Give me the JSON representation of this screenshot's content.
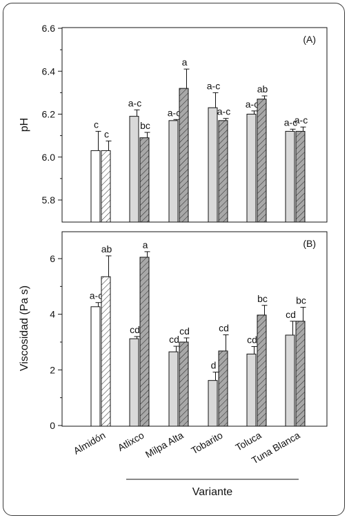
{
  "colors": {
    "control": "#ffffff",
    "gray": "#d9d9d9",
    "hatch_fill": "#a8a8a8",
    "ink": "#111111"
  },
  "chart_data": [
    {
      "type": "bar",
      "panel_label": "(A)",
      "ylabel": "pH",
      "ylim": [
        5.65,
        6.6
      ],
      "yticks": [
        "5.8",
        "6.0",
        "6.2",
        "6.4",
        "6.6"
      ],
      "categories": [
        "Almidón",
        "Atlixco",
        "Milpa Alta",
        "Tobarito",
        "Toluca",
        "Tuna Blanca"
      ],
      "series": [
        {
          "values": [
            6.03,
            6.19,
            6.17,
            6.23,
            6.2,
            6.12
          ],
          "errors": [
            0.09,
            0.03,
            0.005,
            0.07,
            0.015,
            0.01
          ],
          "labels": [
            "c",
            "a-c",
            "a-c",
            "a-c",
            "a-c",
            "a-c"
          ]
        },
        {
          "values": [
            6.03,
            6.09,
            6.32,
            6.17,
            6.27,
            6.12
          ],
          "errors": [
            0.045,
            0.025,
            0.09,
            0.01,
            0.015,
            0.02
          ],
          "labels": [
            "c",
            "bc",
            "a",
            "a-c",
            "ab",
            "a-c"
          ]
        }
      ]
    },
    {
      "type": "bar",
      "panel_label": "(B)",
      "ylabel": "Viscosidad (Pa s)",
      "ylim": [
        0,
        7
      ],
      "yticks": [
        "0",
        "2",
        "4",
        "6"
      ],
      "xlabel": "Variante",
      "categories": [
        "Almidón",
        "Atlixco",
        "Milpa Alta",
        "Tobarito",
        "Toluca",
        "Tuna Blanca"
      ],
      "series": [
        {
          "values": [
            4.27,
            3.12,
            2.65,
            1.62,
            2.57,
            3.25
          ],
          "errors": [
            0.15,
            0.08,
            0.2,
            0.3,
            0.27,
            0.5
          ],
          "labels": [
            "a-c",
            "cd",
            "cd",
            "d",
            "cd",
            "cd"
          ]
        },
        {
          "values": [
            5.35,
            6.05,
            3.0,
            2.68,
            3.97,
            3.75
          ],
          "errors": [
            0.75,
            0.2,
            0.15,
            0.58,
            0.35,
            0.5
          ],
          "labels": [
            "ab",
            "a",
            "cd",
            "cd",
            "bc",
            "bc"
          ]
        }
      ]
    }
  ]
}
